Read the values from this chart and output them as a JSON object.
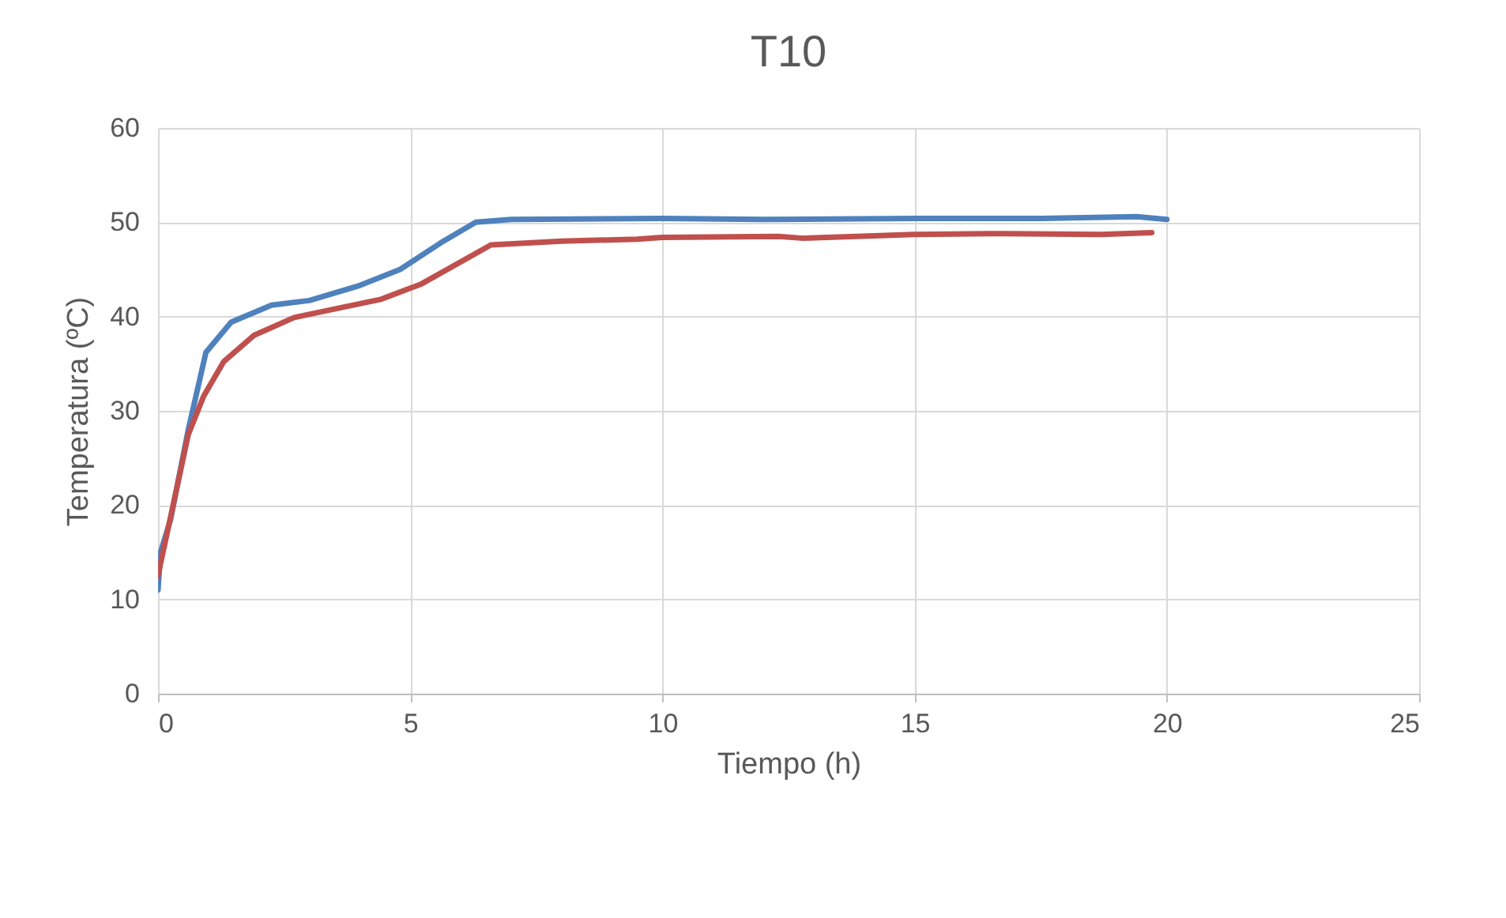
{
  "chart_data": {
    "type": "line",
    "title": "T10",
    "xlabel": "Tiempo (h)",
    "ylabel": "Temperatura (ºC)",
    "xlim": [
      0,
      25
    ],
    "xticks": [
      0,
      5,
      10,
      15,
      20,
      25
    ],
    "ylim": [
      0,
      60
    ],
    "yticks": [
      0,
      10,
      20,
      30,
      40,
      50,
      60
    ],
    "grid": true,
    "series": [
      {
        "color": "#4f81bd",
        "x": [
          0,
          0.05,
          0.25,
          0.6,
          0.95,
          1.45,
          2.25,
          3.0,
          4.0,
          4.8,
          5.6,
          6.3,
          7,
          10,
          12,
          15,
          17.5,
          19.4,
          20
        ],
        "values": [
          11,
          15,
          18.5,
          28,
          36.2,
          39.4,
          41.2,
          41.7,
          43.3,
          45,
          47.8,
          50,
          50.3,
          50.4,
          50.3,
          50.4,
          50.4,
          50.6,
          50.3
        ]
      },
      {
        "color": "#c0504d",
        "x": [
          0,
          0.05,
          0.3,
          0.6,
          0.9,
          1.3,
          1.9,
          2.7,
          3.5,
          4.4,
          5.2,
          6.6,
          8,
          9.5,
          10,
          12.3,
          12.8,
          15,
          16.5,
          18.7,
          19.7
        ],
        "values": [
          12.5,
          13.8,
          20,
          27.5,
          31.5,
          35.2,
          38,
          39.9,
          40.8,
          41.8,
          43.4,
          47.6,
          48,
          48.2,
          48.4,
          48.5,
          48.3,
          48.7,
          48.8,
          48.7,
          48.9
        ]
      }
    ]
  }
}
